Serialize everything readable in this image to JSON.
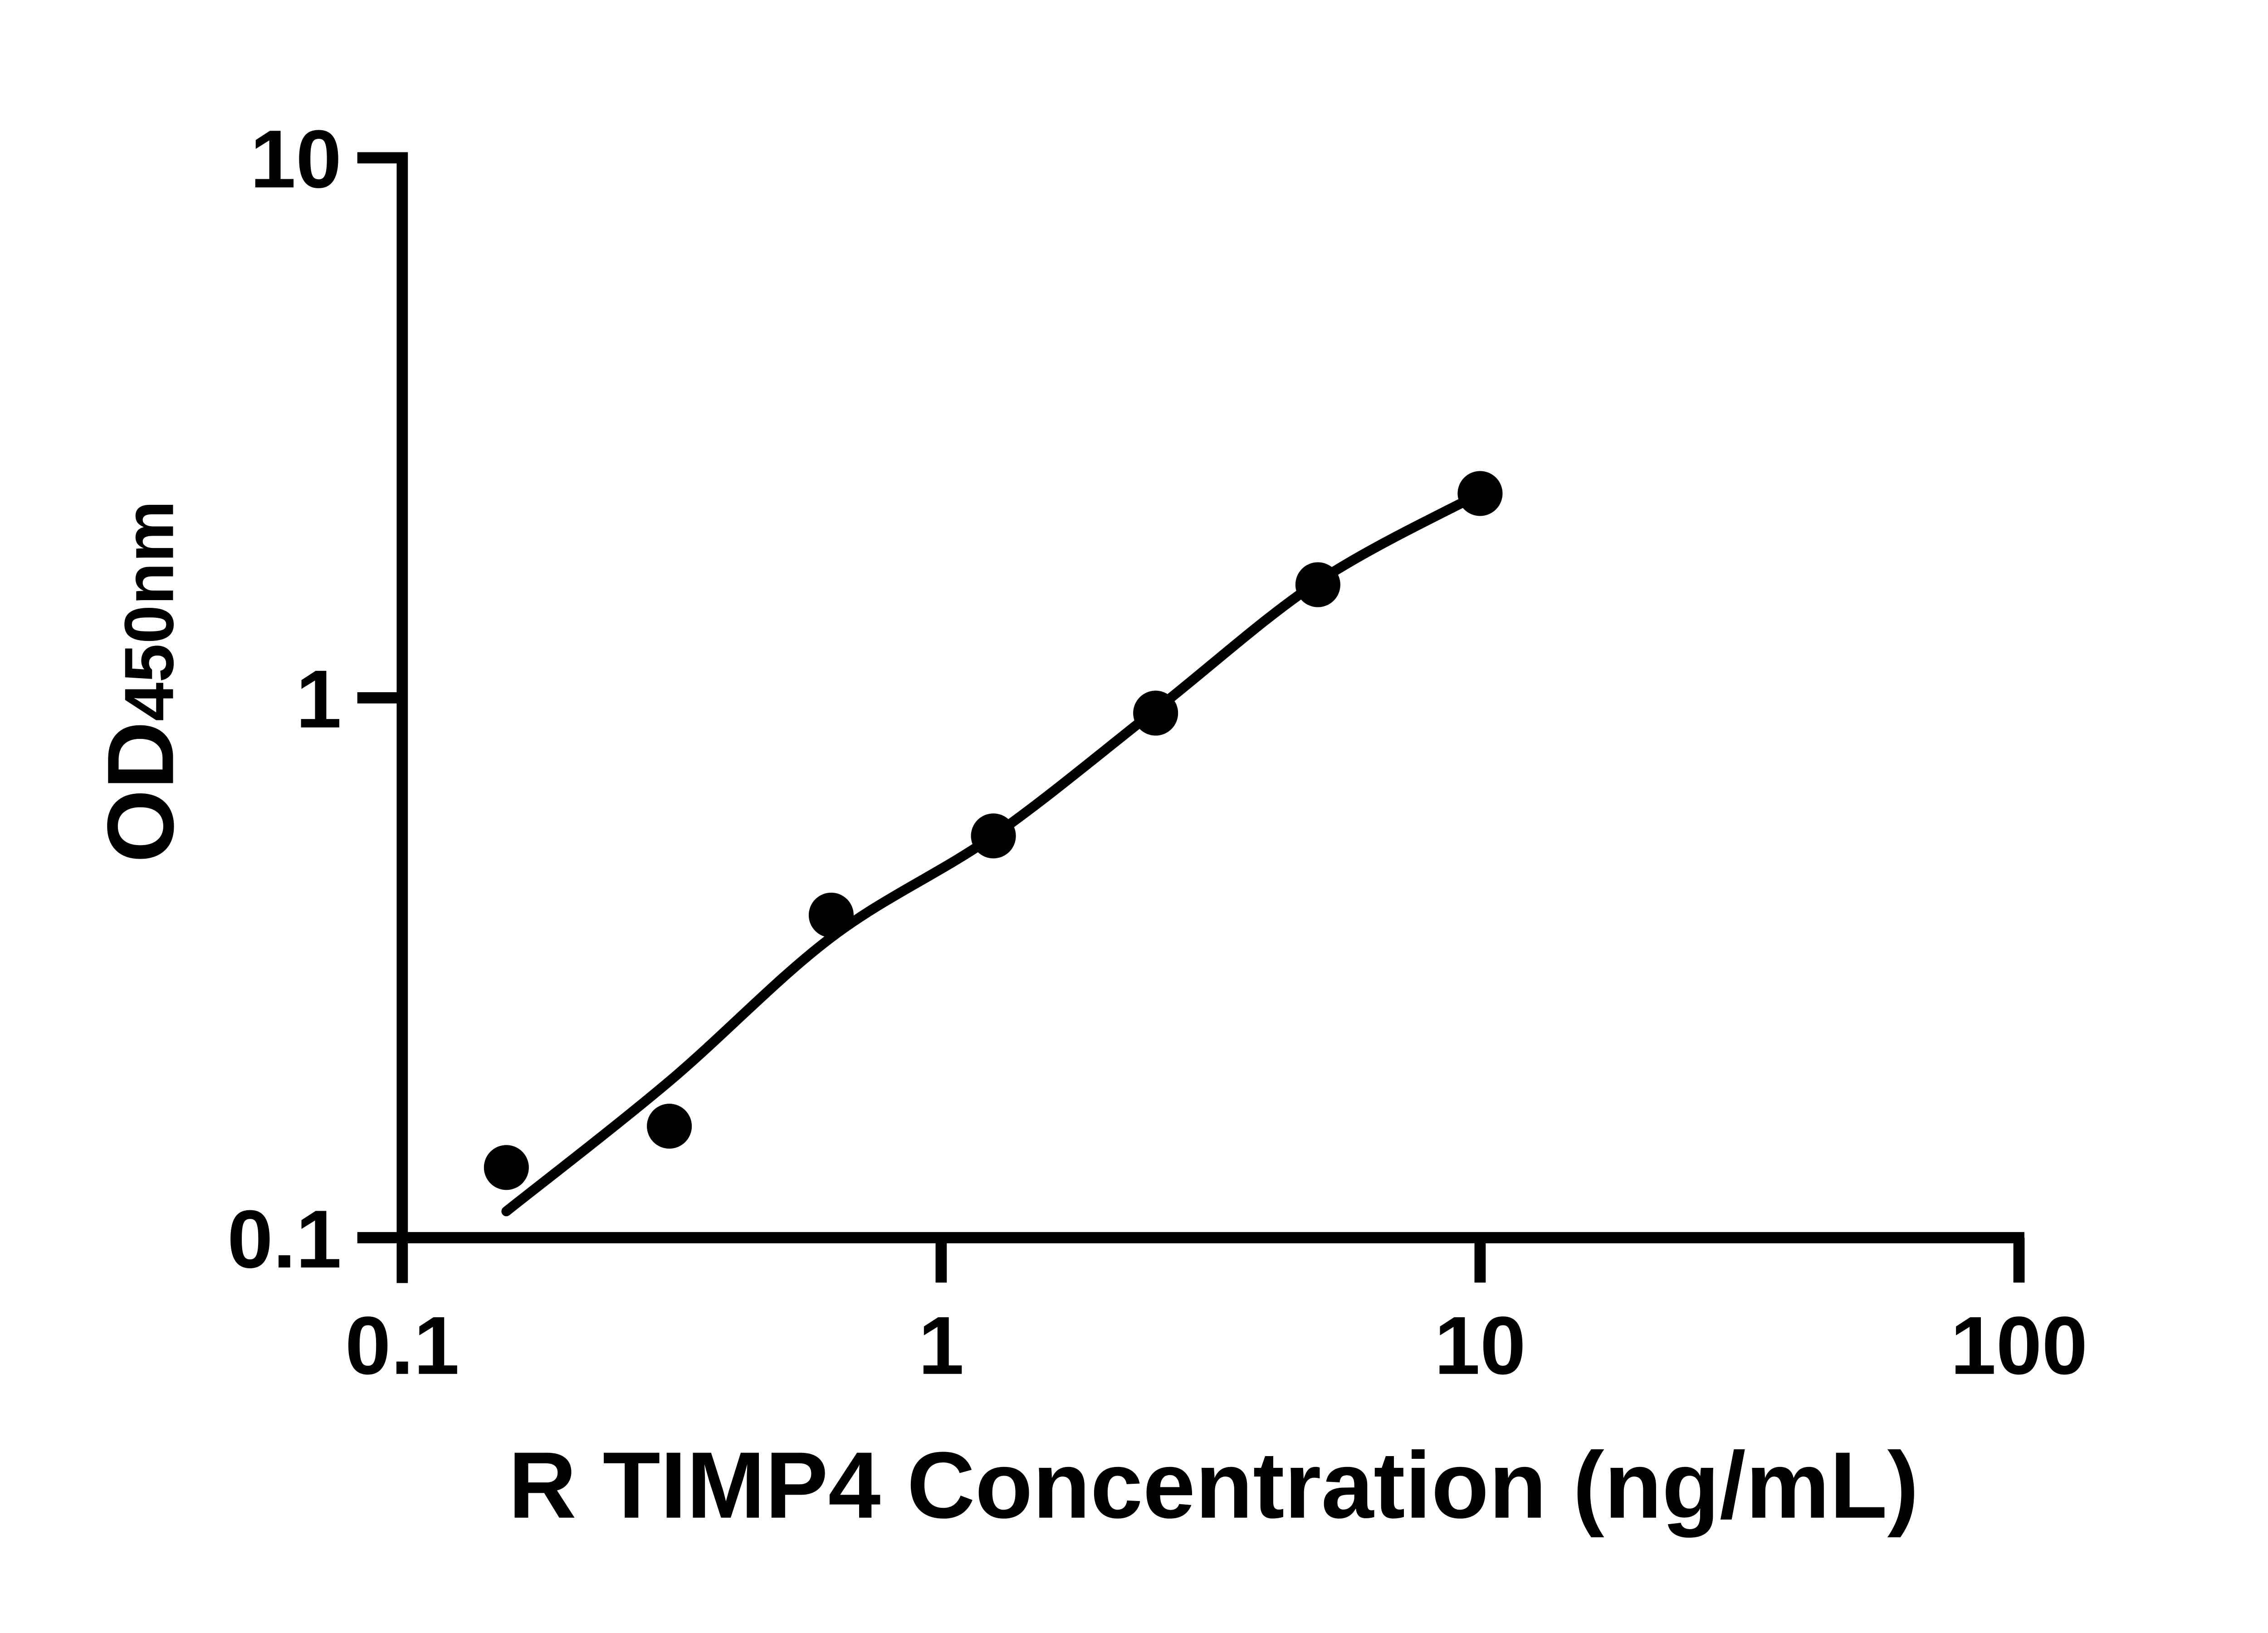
{
  "chart_data": {
    "type": "scatter",
    "title": "",
    "xlabel": "R TIMP4 Concentration (ng/mL)",
    "ylabel_main": "OD",
    "ylabel_sub": "450nm",
    "x_scale": "log",
    "y_scale": "log",
    "xlim": [
      0.1,
      100
    ],
    "ylim": [
      0.1,
      10
    ],
    "grid": false,
    "legend": "none",
    "x_ticks": [
      {
        "value": 0.1,
        "label": "0.1"
      },
      {
        "value": 1,
        "label": "1"
      },
      {
        "value": 10,
        "label": "10"
      },
      {
        "value": 100,
        "label": "100"
      }
    ],
    "y_ticks": [
      {
        "value": 10,
        "label": "10"
      },
      {
        "value": 1,
        "label": "1"
      },
      {
        "value": 0.1,
        "label": "0.1"
      }
    ],
    "series": [
      {
        "name": "standard-curve-points",
        "x": [
          0.156,
          0.313,
          0.625,
          1.25,
          2.5,
          5,
          10
        ],
        "y": [
          0.135,
          0.161,
          0.396,
          0.555,
          0.937,
          1.62,
          2.39
        ]
      }
    ],
    "fit_curve": {
      "x": [
        0.156,
        0.313,
        0.625,
        1.25,
        2.5,
        5,
        10
      ],
      "y": [
        0.112,
        0.195,
        0.36,
        0.555,
        0.95,
        1.64,
        2.39
      ]
    },
    "marker_color": "#000000",
    "line_color": "#000000",
    "background_color": "#ffffff"
  }
}
